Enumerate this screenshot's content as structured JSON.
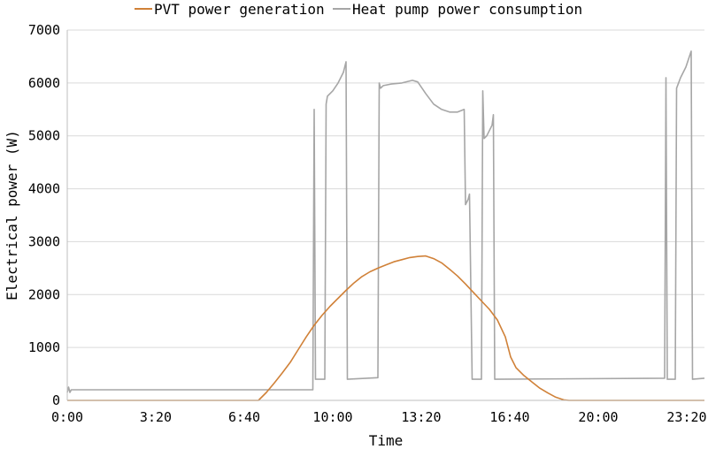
{
  "chart_data": {
    "type": "line",
    "xlabel": "Time",
    "ylabel": "Electrical power (W)",
    "x_unit": "hours",
    "xlim": [
      0,
      24
    ],
    "ylim": [
      0,
      7000
    ],
    "x_ticks": [
      {
        "value": 0,
        "label": "0:00"
      },
      {
        "value": 3.333,
        "label": "3:20"
      },
      {
        "value": 6.667,
        "label": "6:40"
      },
      {
        "value": 10,
        "label": "10:00"
      },
      {
        "value": 13.333,
        "label": "13:20"
      },
      {
        "value": 16.667,
        "label": "16:40"
      },
      {
        "value": 20,
        "label": "20:00"
      },
      {
        "value": 23.333,
        "label": "23:20"
      }
    ],
    "y_ticks": [
      {
        "value": 0,
        "label": "0"
      },
      {
        "value": 1000,
        "label": "1000"
      },
      {
        "value": 2000,
        "label": "2000"
      },
      {
        "value": 3000,
        "label": "3000"
      },
      {
        "value": 4000,
        "label": "4000"
      },
      {
        "value": 5000,
        "label": "5000"
      },
      {
        "value": 6000,
        "label": "6000"
      },
      {
        "value": 7000,
        "label": "7000"
      }
    ],
    "grid": "horizontal",
    "legend_position": "top",
    "series": [
      {
        "name": "PVT power generation",
        "color": "#d08138",
        "points": [
          [
            0,
            0
          ],
          [
            7.2,
            0
          ],
          [
            7.3,
            50
          ],
          [
            7.5,
            150
          ],
          [
            7.8,
            330
          ],
          [
            8.1,
            520
          ],
          [
            8.4,
            720
          ],
          [
            8.7,
            960
          ],
          [
            9.0,
            1200
          ],
          [
            9.3,
            1420
          ],
          [
            9.6,
            1610
          ],
          [
            9.9,
            1780
          ],
          [
            10.2,
            1930
          ],
          [
            10.5,
            2080
          ],
          [
            10.8,
            2220
          ],
          [
            11.1,
            2340
          ],
          [
            11.4,
            2430
          ],
          [
            11.7,
            2500
          ],
          [
            12.0,
            2560
          ],
          [
            12.3,
            2620
          ],
          [
            12.6,
            2660
          ],
          [
            12.9,
            2700
          ],
          [
            13.2,
            2720
          ],
          [
            13.5,
            2730
          ],
          [
            13.8,
            2680
          ],
          [
            14.1,
            2600
          ],
          [
            14.4,
            2480
          ],
          [
            14.7,
            2350
          ],
          [
            15.0,
            2200
          ],
          [
            15.3,
            2040
          ],
          [
            15.6,
            1880
          ],
          [
            15.9,
            1720
          ],
          [
            16.2,
            1520
          ],
          [
            16.5,
            1200
          ],
          [
            16.7,
            820
          ],
          [
            16.9,
            620
          ],
          [
            17.2,
            470
          ],
          [
            17.5,
            350
          ],
          [
            17.8,
            230
          ],
          [
            18.1,
            140
          ],
          [
            18.4,
            60
          ],
          [
            18.7,
            10
          ],
          [
            18.9,
            0
          ],
          [
            24,
            0
          ]
        ]
      },
      {
        "name": "Heat pump power consumption",
        "color": "#a6a6a6",
        "points": [
          [
            0,
            150
          ],
          [
            0.05,
            250
          ],
          [
            0.1,
            150
          ],
          [
            0.15,
            200
          ],
          [
            9.25,
            200
          ],
          [
            9.3,
            5500
          ],
          [
            9.35,
            400
          ],
          [
            9.7,
            400
          ],
          [
            9.75,
            5600
          ],
          [
            9.8,
            5750
          ],
          [
            10.0,
            5850
          ],
          [
            10.2,
            6000
          ],
          [
            10.4,
            6200
          ],
          [
            10.5,
            6400
          ],
          [
            10.55,
            400
          ],
          [
            11.7,
            430
          ],
          [
            11.75,
            6000
          ],
          [
            11.8,
            5900
          ],
          [
            11.9,
            5950
          ],
          [
            12.2,
            5980
          ],
          [
            12.6,
            6000
          ],
          [
            13.0,
            6050
          ],
          [
            13.2,
            6020
          ],
          [
            13.5,
            5800
          ],
          [
            13.8,
            5600
          ],
          [
            14.1,
            5500
          ],
          [
            14.4,
            5450
          ],
          [
            14.7,
            5450
          ],
          [
            14.95,
            5500
          ],
          [
            15.0,
            3700
          ],
          [
            15.1,
            3800
          ],
          [
            15.15,
            3900
          ],
          [
            15.25,
            400
          ],
          [
            15.6,
            400
          ],
          [
            15.65,
            5850
          ],
          [
            15.7,
            4950
          ],
          [
            15.8,
            5000
          ],
          [
            16.0,
            5200
          ],
          [
            16.05,
            5400
          ],
          [
            16.1,
            400
          ],
          [
            22.5,
            420
          ],
          [
            22.55,
            6100
          ],
          [
            22.6,
            400
          ],
          [
            22.9,
            400
          ],
          [
            22.95,
            5900
          ],
          [
            23.1,
            6100
          ],
          [
            23.3,
            6300
          ],
          [
            23.5,
            6600
          ],
          [
            23.55,
            400
          ],
          [
            24,
            420
          ]
        ]
      }
    ]
  }
}
